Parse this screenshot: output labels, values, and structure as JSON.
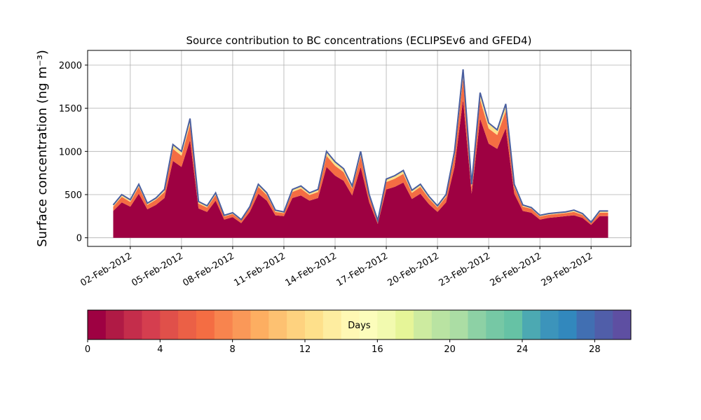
{
  "chart_data": {
    "type": "stacked_area",
    "title": "Source contribution to BC concentrations (ECLIPSEv6 and GFED4)",
    "ylabel": "Surface concentration (ng m⁻³)",
    "x": [
      "2012-02-01T00:00",
      "2012-02-01T12:00",
      "2012-02-02T00:00",
      "2012-02-02T12:00",
      "2012-02-03T00:00",
      "2012-02-03T12:00",
      "2012-02-04T00:00",
      "2012-02-04T12:00",
      "2012-02-05T00:00",
      "2012-02-05T12:00",
      "2012-02-06T00:00",
      "2012-02-06T12:00",
      "2012-02-07T00:00",
      "2012-02-07T12:00",
      "2012-02-08T00:00",
      "2012-02-08T12:00",
      "2012-02-09T00:00",
      "2012-02-09T12:00",
      "2012-02-10T00:00",
      "2012-02-10T12:00",
      "2012-02-11T00:00",
      "2012-02-11T12:00",
      "2012-02-12T00:00",
      "2012-02-12T12:00",
      "2012-02-13T00:00",
      "2012-02-13T12:00",
      "2012-02-14T00:00",
      "2012-02-14T12:00",
      "2012-02-15T00:00",
      "2012-02-15T12:00",
      "2012-02-16T00:00",
      "2012-02-16T12:00",
      "2012-02-17T00:00",
      "2012-02-17T12:00",
      "2012-02-18T00:00",
      "2012-02-18T12:00",
      "2012-02-19T00:00",
      "2012-02-19T12:00",
      "2012-02-20T00:00",
      "2012-02-20T12:00",
      "2012-02-21T00:00",
      "2012-02-21T12:00",
      "2012-02-22T00:00",
      "2012-02-22T12:00",
      "2012-02-23T00:00",
      "2012-02-23T12:00",
      "2012-02-24T00:00",
      "2012-02-24T12:00",
      "2012-02-25T00:00",
      "2012-02-25T12:00",
      "2012-02-26T00:00",
      "2012-02-26T12:00",
      "2012-02-27T00:00",
      "2012-02-27T12:00",
      "2012-02-28T00:00",
      "2012-02-28T12:00",
      "2012-02-29T00:00",
      "2012-02-29T12:00",
      "2012-03-01T00:00"
    ],
    "series": [
      {
        "color": "#9e0142",
        "values": [
          310,
          410,
          360,
          510,
          330,
          380,
          460,
          890,
          820,
          1130,
          340,
          300,
          430,
          210,
          240,
          170,
          300,
          510,
          430,
          260,
          250,
          460,
          490,
          430,
          460,
          820,
          720,
          660,
          490,
          820,
          410,
          160,
          560,
          590,
          640,
          450,
          510,
          390,
          300,
          410,
          820,
          1600,
          510,
          1380,
          1090,
          1030,
          1270,
          510,
          310,
          290,
          210,
          230,
          240,
          250,
          260,
          230,
          150,
          250,
          250
        ]
      },
      {
        "color": "#f46d43",
        "values": [
          50,
          65,
          55,
          80,
          50,
          60,
          70,
          140,
          130,
          180,
          55,
          50,
          65,
          35,
          35,
          30,
          45,
          80,
          65,
          40,
          35,
          70,
          80,
          65,
          70,
          130,
          115,
          100,
          80,
          130,
          65,
          30,
          85,
          95,
          100,
          70,
          80,
          65,
          50,
          65,
          130,
          250,
          80,
          220,
          175,
          160,
          200,
          80,
          50,
          45,
          35,
          35,
          35,
          35,
          40,
          35,
          20,
          40,
          40
        ]
      },
      {
        "color": "#fee08b",
        "values": [
          20,
          25,
          25,
          30,
          20,
          20,
          30,
          50,
          50,
          70,
          25,
          20,
          25,
          15,
          15,
          10,
          15,
          30,
          25,
          20,
          15,
          30,
          30,
          25,
          30,
          50,
          45,
          40,
          30,
          50,
          25,
          10,
          35,
          35,
          40,
          30,
          30,
          25,
          20,
          25,
          50,
          100,
          30,
          80,
          65,
          60,
          80,
          30,
          20,
          15,
          15,
          15,
          15,
          15,
          20,
          15,
          10,
          20,
          20
        ]
      }
    ],
    "outline_color": "#4a5fa0",
    "xlim": [
      "2012-01-30T12:00",
      "2012-03-02T08:00"
    ],
    "xticks": [
      {
        "value": "2012-02-02T00:00",
        "label": "02-Feb-2012"
      },
      {
        "value": "2012-02-05T00:00",
        "label": "05-Feb-2012"
      },
      {
        "value": "2012-02-08T00:00",
        "label": "08-Feb-2012"
      },
      {
        "value": "2012-02-11T00:00",
        "label": "11-Feb-2012"
      },
      {
        "value": "2012-02-14T00:00",
        "label": "14-Feb-2012"
      },
      {
        "value": "2012-02-17T00:00",
        "label": "17-Feb-2012"
      },
      {
        "value": "2012-02-20T00:00",
        "label": "20-Feb-2012"
      },
      {
        "value": "2012-02-23T00:00",
        "label": "23-Feb-2012"
      },
      {
        "value": "2012-02-26T00:00",
        "label": "26-Feb-2012"
      },
      {
        "value": "2012-02-29T00:00",
        "label": "29-Feb-2012"
      }
    ],
    "ylim": [
      -100,
      2170
    ],
    "yticks": [
      0,
      500,
      1000,
      1500,
      2000
    ],
    "grid": true,
    "colorbar": {
      "label": "Days",
      "lim": [
        0,
        30
      ],
      "ticks": [
        0,
        4,
        8,
        12,
        16,
        20,
        24,
        28
      ],
      "colors": [
        "#9e0142",
        "#b01a45",
        "#c42d4b",
        "#d53e4f",
        "#e0504a",
        "#eb6046",
        "#f46d43",
        "#f8844e",
        "#fa9858",
        "#fdae61",
        "#fdc171",
        "#fed27f",
        "#fee08b",
        "#feeda0",
        "#fff8b4",
        "#fcfdbb",
        "#f2faaf",
        "#e6f598",
        "#cdeba0",
        "#b9e3a2",
        "#abdda4",
        "#8dd1a5",
        "#76c8a5",
        "#66c2a5",
        "#4ca9b2",
        "#3c94bb",
        "#3288bd",
        "#416fb2",
        "#505ea9",
        "#5e4fa2"
      ]
    }
  }
}
